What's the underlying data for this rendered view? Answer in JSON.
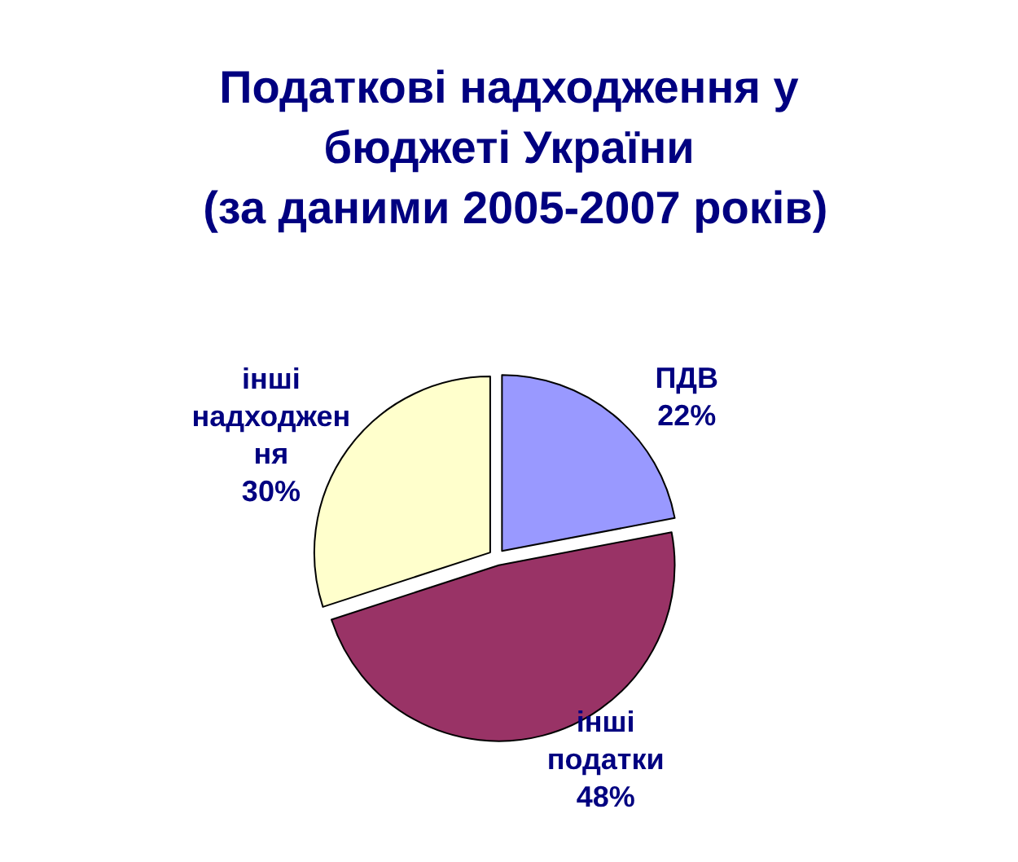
{
  "chart_data": {
    "type": "pie",
    "title": "Податкові надходження у\nбюджеті України\n (за даними 2005-2007 років)",
    "categories": [
      "ПДВ",
      "інші податки",
      "інші надходження"
    ],
    "values": [
      22,
      48,
      30
    ],
    "value_labels": [
      "22%",
      "48%",
      "30%"
    ],
    "colors": [
      "#9999ff",
      "#993366",
      "#ffffcc"
    ],
    "legend": false
  }
}
